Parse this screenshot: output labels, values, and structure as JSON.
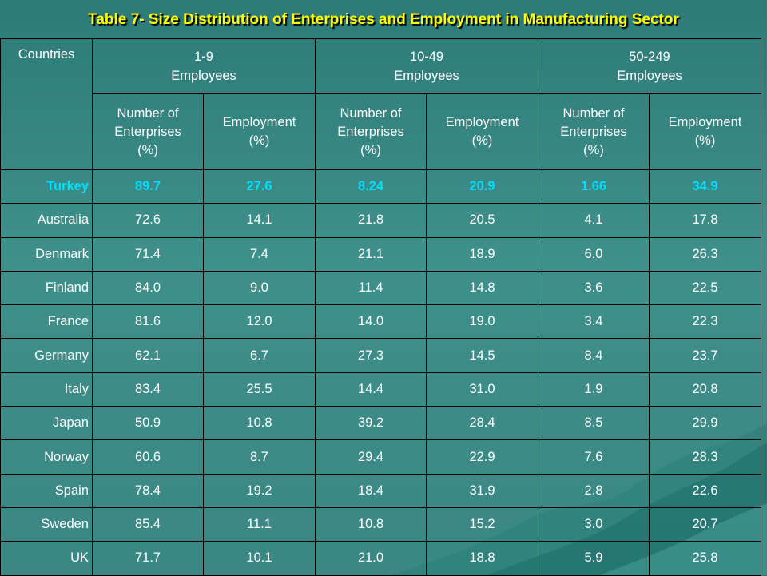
{
  "title": "Table 7- Size Distribution of Enterprises and Employment in Manufacturing Sector",
  "colors": {
    "title": "#ffff00",
    "highlight": "#00e0ff",
    "background": "#3f8f8b",
    "text": "#ffffff"
  },
  "header": {
    "countries": "Countries",
    "groups": [
      {
        "line1": "1-9",
        "line2": "Employees"
      },
      {
        "line1": "10-49",
        "line2": "Employees"
      },
      {
        "line1": "50-249",
        "line2": "Employees"
      }
    ],
    "sub": {
      "enterprises": [
        "Number of",
        "Enterprises",
        "(%)"
      ],
      "employment": [
        "Employment",
        "(%)"
      ]
    }
  },
  "rows": [
    {
      "country": "Turkey",
      "values": [
        "89.7",
        "27.6",
        "8.24",
        "20.9",
        "1.66",
        "34.9"
      ]
    },
    {
      "country": "Australia",
      "values": [
        "72.6",
        "14.1",
        "21.8",
        "20.5",
        "4.1",
        "17.8"
      ]
    },
    {
      "country": "Denmark",
      "values": [
        "71.4",
        "7.4",
        "21.1",
        "18.9",
        "6.0",
        "26.3"
      ]
    },
    {
      "country": "Finland",
      "values": [
        "84.0",
        "9.0",
        "11.4",
        "14.8",
        "3.6",
        "22.5"
      ]
    },
    {
      "country": "France",
      "values": [
        "81.6",
        "12.0",
        "14.0",
        "19.0",
        "3.4",
        "22.3"
      ]
    },
    {
      "country": "Germany",
      "values": [
        "62.1",
        "6.7",
        "27.3",
        "14.5",
        "8.4",
        "23.7"
      ]
    },
    {
      "country": "Italy",
      "values": [
        "83.4",
        "25.5",
        "14.4",
        "31.0",
        "1.9",
        "20.8"
      ]
    },
    {
      "country": "Japan",
      "values": [
        "50.9",
        "10.8",
        "39.2",
        "28.4",
        "8.5",
        "29.9"
      ]
    },
    {
      "country": "Norway",
      "values": [
        "60.6",
        "8.7",
        "29.4",
        "22.9",
        "7.6",
        "28.3"
      ]
    },
    {
      "country": "Spain",
      "values": [
        "78.4",
        "19.2",
        "18.4",
        "31.9",
        "2.8",
        "22.6"
      ]
    },
    {
      "country": "Sweden",
      "values": [
        "85.4",
        "11.1",
        "10.8",
        "15.2",
        "3.0",
        "20.7"
      ]
    },
    {
      "country": "UK",
      "values": [
        "71.7",
        "10.1",
        "21.0",
        "18.8",
        "5.9",
        "25.8"
      ]
    }
  ]
}
